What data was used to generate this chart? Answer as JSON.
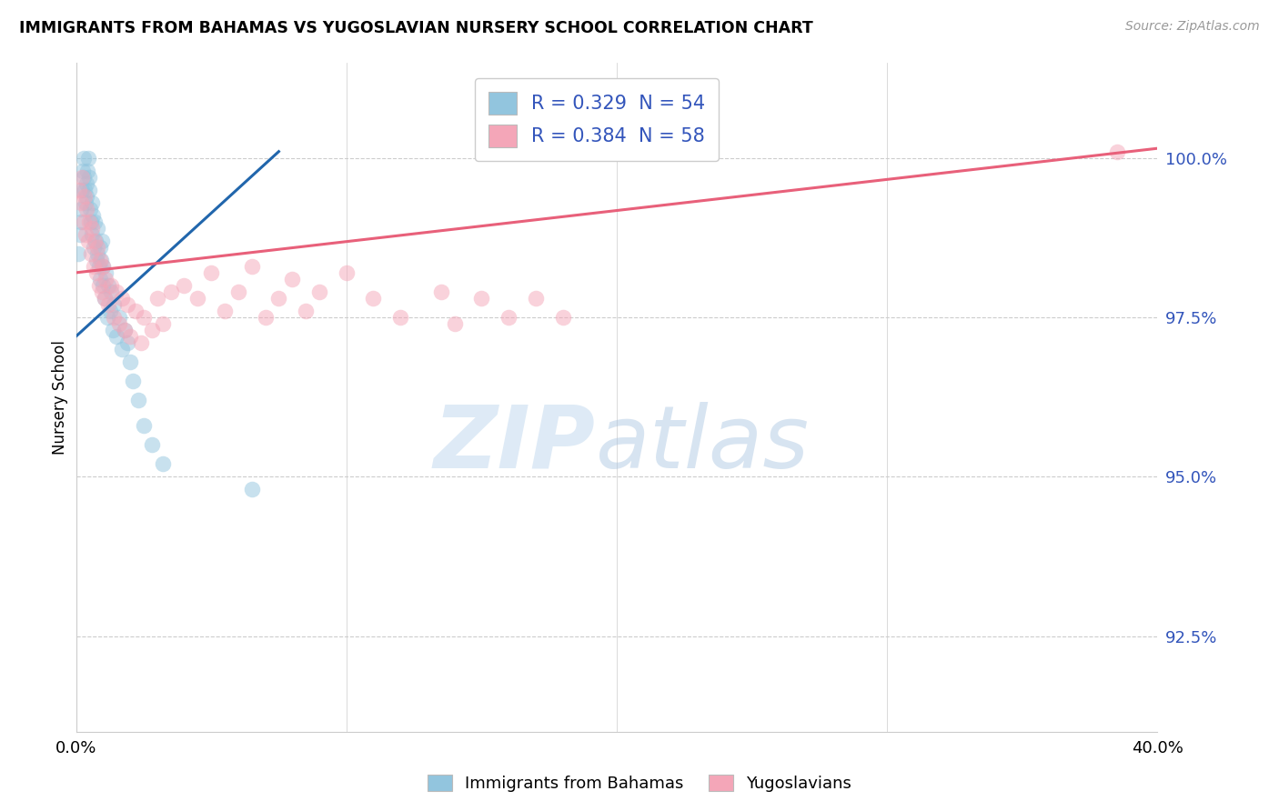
{
  "title": "IMMIGRANTS FROM BAHAMAS VS YUGOSLAVIAN NURSERY SCHOOL CORRELATION CHART",
  "source": "Source: ZipAtlas.com",
  "ylabel": "Nursery School",
  "y_ticks": [
    92.5,
    95.0,
    97.5,
    100.0
  ],
  "y_tick_labels": [
    "92.5%",
    "95.0%",
    "97.5%",
    "100.0%"
  ],
  "xlim": [
    0.0,
    40.0
  ],
  "ylim": [
    91.0,
    101.5
  ],
  "legend_r1": "R = 0.329  N = 54",
  "legend_r2": "R = 0.384  N = 58",
  "blue_color": "#92C5DE",
  "pink_color": "#F4A6B8",
  "blue_line_color": "#2166AC",
  "pink_line_color": "#E8607A",
  "bahamas_x": [
    0.1,
    0.15,
    0.18,
    0.2,
    0.22,
    0.25,
    0.28,
    0.3,
    0.32,
    0.35,
    0.38,
    0.4,
    0.42,
    0.45,
    0.48,
    0.5,
    0.52,
    0.55,
    0.58,
    0.6,
    0.62,
    0.65,
    0.7,
    0.72,
    0.75,
    0.78,
    0.8,
    0.85,
    0.88,
    0.9,
    0.92,
    0.95,
    1.0,
    1.0,
    1.05,
    1.1,
    1.15,
    1.2,
    1.25,
    1.3,
    1.35,
    1.4,
    1.5,
    1.6,
    1.7,
    1.8,
    1.9,
    2.0,
    2.1,
    2.3,
    2.5,
    2.8,
    3.2,
    6.5
  ],
  "bahamas_y": [
    98.5,
    98.8,
    99.0,
    99.2,
    99.5,
    99.8,
    100.0,
    99.7,
    99.5,
    99.3,
    99.6,
    99.4,
    99.8,
    100.0,
    99.7,
    99.5,
    99.2,
    99.0,
    99.3,
    98.8,
    99.1,
    98.6,
    99.0,
    98.7,
    98.4,
    98.9,
    98.5,
    98.3,
    98.6,
    98.1,
    98.4,
    98.7,
    98.0,
    98.3,
    97.8,
    98.2,
    97.5,
    98.0,
    97.6,
    97.9,
    97.3,
    97.7,
    97.2,
    97.5,
    97.0,
    97.3,
    97.1,
    96.8,
    96.5,
    96.2,
    95.8,
    95.5,
    95.2,
    94.8
  ],
  "yugoslav_x": [
    0.12,
    0.18,
    0.22,
    0.28,
    0.32,
    0.35,
    0.4,
    0.45,
    0.48,
    0.55,
    0.6,
    0.65,
    0.7,
    0.75,
    0.8,
    0.85,
    0.9,
    0.95,
    1.0,
    1.05,
    1.1,
    1.2,
    1.3,
    1.4,
    1.5,
    1.6,
    1.7,
    1.8,
    1.9,
    2.0,
    2.2,
    2.4,
    2.5,
    2.8,
    3.0,
    3.2,
    3.5,
    4.0,
    4.5,
    5.0,
    5.5,
    6.0,
    6.5,
    7.0,
    7.5,
    8.0,
    8.5,
    9.0,
    10.0,
    11.0,
    12.0,
    13.5,
    14.0,
    15.0,
    16.0,
    17.0,
    18.0,
    38.5
  ],
  "yugoslav_y": [
    99.5,
    99.3,
    99.7,
    99.0,
    99.4,
    98.8,
    99.2,
    98.7,
    99.0,
    98.5,
    98.9,
    98.3,
    98.7,
    98.2,
    98.6,
    98.0,
    98.4,
    97.9,
    98.3,
    97.8,
    98.1,
    97.7,
    98.0,
    97.5,
    97.9,
    97.4,
    97.8,
    97.3,
    97.7,
    97.2,
    97.6,
    97.1,
    97.5,
    97.3,
    97.8,
    97.4,
    97.9,
    98.0,
    97.8,
    98.2,
    97.6,
    97.9,
    98.3,
    97.5,
    97.8,
    98.1,
    97.6,
    97.9,
    98.2,
    97.8,
    97.5,
    97.9,
    97.4,
    97.8,
    97.5,
    97.8,
    97.5,
    100.1
  ]
}
